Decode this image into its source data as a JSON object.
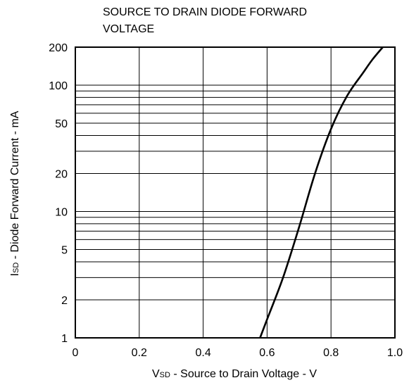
{
  "chart_data": {
    "type": "line",
    "title_lines": [
      "SOURCE TO DRAIN DIODE FORWARD",
      "VOLTAGE"
    ],
    "xlabel": {
      "main": "V",
      "sub": "SD",
      "rest": " - Source to Drain Voltage - V"
    },
    "ylabel": {
      "main": "I",
      "sub": "SD",
      "rest": " - Diode Forward Current - mA"
    },
    "xlim": [
      0,
      1.0
    ],
    "ylim": [
      1,
      200
    ],
    "yscale": "log",
    "grid": true,
    "x_ticks": [
      {
        "value": 0,
        "label": "0"
      },
      {
        "value": 0.2,
        "label": "0.2"
      },
      {
        "value": 0.4,
        "label": "0.4"
      },
      {
        "value": 0.6,
        "label": "0.6"
      },
      {
        "value": 0.8,
        "label": "0.8"
      },
      {
        "value": 1.0,
        "label": "1.0"
      }
    ],
    "y_ticks": [
      {
        "value": 1,
        "label": "1"
      },
      {
        "value": 2,
        "label": "2"
      },
      {
        "value": 5,
        "label": "5"
      },
      {
        "value": 10,
        "label": "10"
      },
      {
        "value": 20,
        "label": "20"
      },
      {
        "value": 50,
        "label": "50"
      },
      {
        "value": 100,
        "label": "100"
      },
      {
        "value": 200,
        "label": "200"
      }
    ],
    "y_grid_values": [
      1,
      2,
      3,
      4,
      5,
      6,
      7,
      8,
      9,
      10,
      20,
      30,
      40,
      50,
      60,
      70,
      80,
      90,
      100,
      200
    ],
    "series": [
      {
        "x": [
          0.578,
          0.6,
          0.65,
          0.7,
          0.75,
          0.8,
          0.85,
          0.9,
          0.93,
          0.962
        ],
        "y": [
          1,
          1.4,
          3.0,
          7.5,
          20,
          45,
          82,
          125,
          160,
          200
        ]
      }
    ]
  }
}
